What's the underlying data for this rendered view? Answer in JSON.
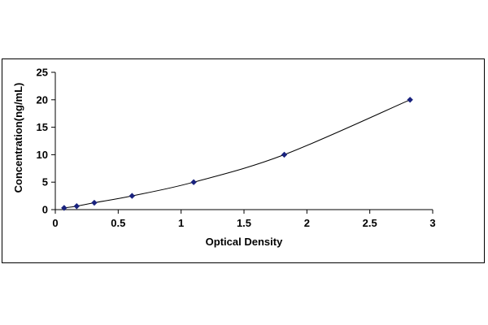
{
  "chart_data": {
    "type": "scatter",
    "title": "",
    "xlabel": "Optical Density",
    "ylabel": "Concentration(ng/mL)",
    "xlim": [
      0,
      3
    ],
    "ylim": [
      0,
      25
    ],
    "xticks": [
      "0",
      "0.5",
      "1",
      "1.5",
      "2",
      "2.5",
      "3"
    ],
    "yticks": [
      "0",
      "5",
      "10",
      "15",
      "20",
      "25"
    ],
    "grid": false,
    "legend": "none",
    "trendline": "smooth curve through points",
    "series": [
      {
        "marker": "diamond",
        "color": "#1a237e",
        "x": [
          0.07,
          0.17,
          0.31,
          0.61,
          1.1,
          1.82,
          2.82
        ],
        "y": [
          0.31,
          0.63,
          1.25,
          2.5,
          5,
          10,
          20
        ]
      }
    ]
  }
}
